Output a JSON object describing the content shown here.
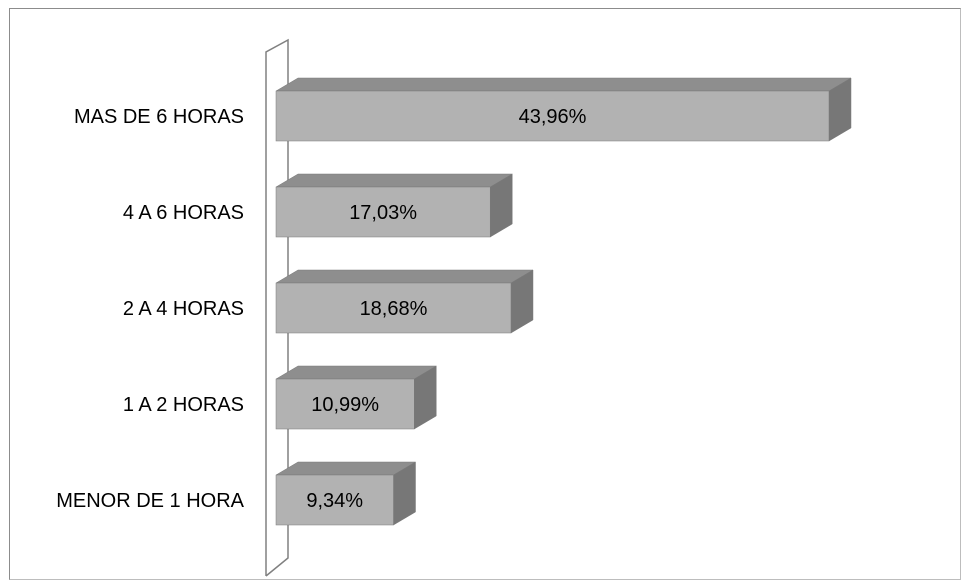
{
  "chart_data": {
    "type": "bar",
    "orientation": "horizontal",
    "style": "3d",
    "categories": [
      "MAS DE 6 HORAS",
      "4 A 6 HORAS",
      "2 A 4 HORAS",
      "1 A 2 HORAS",
      "MENOR DE 1 HORA"
    ],
    "values": [
      43.96,
      17.03,
      18.68,
      10.99,
      9.34
    ],
    "value_labels": [
      "43,96%",
      "17,03%",
      "18,68%",
      "10,99%",
      "9,34%"
    ],
    "title": "",
    "xlabel": "",
    "ylabel": "",
    "xlim": [
      0,
      50
    ],
    "grid": false,
    "legend": "none",
    "colors": {
      "bar_front": "#b2b2b2",
      "bar_top": "#8e8e8e",
      "bar_side": "#777777",
      "bar_edge": "#7a7a7a",
      "wall_edge": "#808080",
      "frame": "#8c8c8c"
    }
  }
}
